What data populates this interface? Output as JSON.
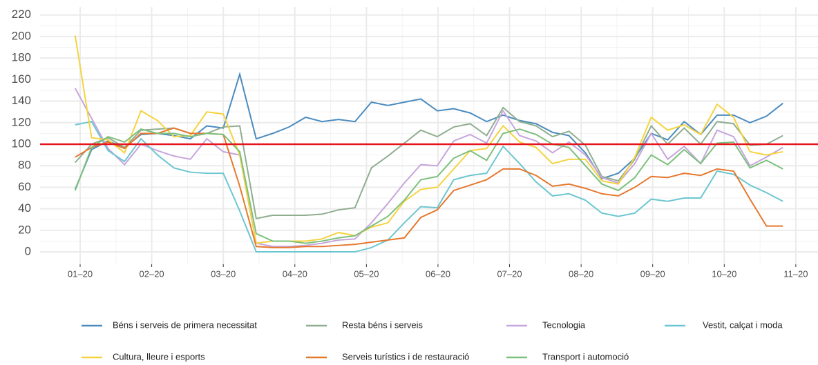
{
  "chart_data": {
    "type": "line",
    "x": [
      0.93,
      1.16,
      1.39,
      1.62,
      1.85,
      2.08,
      2.31,
      2.54,
      2.77,
      3.0,
      3.23,
      3.46,
      3.69,
      3.92,
      4.15,
      4.38,
      4.61,
      4.84,
      5.07,
      5.3,
      5.53,
      5.76,
      5.99,
      6.22,
      6.45,
      6.68,
      6.91,
      7.14,
      7.37,
      7.6,
      7.83,
      8.06,
      8.29,
      8.52,
      8.75,
      8.98,
      9.21,
      9.44,
      9.67,
      9.9,
      10.13,
      10.36,
      10.59,
      10.82
    ],
    "xlim": [
      0.44,
      11.31
    ],
    "xticks": [
      {
        "value": 1,
        "label": "01–20"
      },
      {
        "value": 2,
        "label": "02–20"
      },
      {
        "value": 3,
        "label": "03–20"
      },
      {
        "value": 4,
        "label": "04–20"
      },
      {
        "value": 5,
        "label": "05–20"
      },
      {
        "value": 6,
        "label": "06–20"
      },
      {
        "value": 7,
        "label": "07–20"
      },
      {
        "value": 8,
        "label": "08–20"
      },
      {
        "value": 9,
        "label": "09–20"
      },
      {
        "value": 10,
        "label": "10–20"
      },
      {
        "value": 11,
        "label": "11–20"
      }
    ],
    "ylim": [
      -11.5,
      227.5
    ],
    "yticks": [
      0,
      20,
      40,
      60,
      80,
      100,
      120,
      140,
      160,
      180,
      200,
      220
    ],
    "grid": true,
    "reference_line": {
      "value": 100,
      "color": "#e8141c"
    },
    "legend": "bottom",
    "series": [
      {
        "name": "Béns i serveis de primera necessitat",
        "color": "#4a8bbf",
        "values": [
          58,
          95,
          103,
          97,
          109,
          110,
          108,
          105,
          117,
          115,
          165,
          105,
          110,
          116,
          125,
          121,
          123,
          121,
          139,
          136,
          139,
          142,
          131,
          133,
          129,
          121,
          127,
          122,
          119,
          111,
          108,
          92,
          68,
          73,
          87,
          110,
          104,
          121,
          109,
          127,
          127,
          120,
          126,
          138
        ]
      },
      {
        "name": "Resta béns i serveis",
        "color": "#8fae8f",
        "values": [
          83,
          100,
          106,
          97,
          113,
          114,
          115,
          110,
          110,
          116,
          117,
          31,
          34,
          34,
          34,
          35,
          39,
          41,
          78,
          89,
          101,
          113,
          107,
          116,
          119,
          108,
          134,
          121,
          117,
          107,
          112,
          99,
          70,
          66,
          86,
          117,
          100,
          115,
          100,
          121,
          119,
          99,
          100,
          108
        ]
      },
      {
        "name": "Tecnologia",
        "color": "#c6a5dc",
        "values": [
          152,
          124,
          96,
          81,
          100,
          94,
          89,
          86,
          105,
          93,
          90,
          8,
          5,
          5,
          6,
          8,
          11,
          12,
          27,
          45,
          64,
          81,
          80,
          103,
          109,
          101,
          131,
          108,
          103,
          92,
          102,
          90,
          69,
          64,
          82,
          110,
          86,
          98,
          82,
          113,
          107,
          80,
          88,
          97
        ]
      },
      {
        "name": "Vestit, calçat i moda",
        "color": "#6cc6d0",
        "values": [
          118,
          121,
          94,
          84,
          105,
          90,
          78,
          74,
          73,
          73,
          38,
          0,
          0,
          0,
          0,
          0,
          0,
          0,
          4,
          11,
          27,
          42,
          41,
          67,
          71,
          73,
          98,
          82,
          65,
          52,
          54,
          48,
          36,
          33,
          36,
          49,
          47,
          50,
          50,
          75,
          72,
          62,
          55,
          47
        ]
      },
      {
        "name": "Cultura, lleure i esports",
        "color": "#f5d33f",
        "values": [
          201,
          106,
          104,
          92,
          131,
          122,
          107,
          108,
          130,
          128,
          90,
          8,
          10,
          10,
          10,
          12,
          18,
          15,
          23,
          27,
          47,
          58,
          60,
          77,
          94,
          96,
          117,
          102,
          97,
          82,
          86,
          86,
          66,
          63,
          88,
          125,
          113,
          118,
          109,
          137,
          125,
          93,
          90,
          93
        ]
      },
      {
        "name": "Serveis turístics i de restauració",
        "color": "#e6782e",
        "values": [
          88,
          97,
          102,
          96,
          110,
          110,
          115,
          110,
          110,
          109,
          61,
          5,
          4,
          4,
          5,
          5,
          6,
          7,
          9,
          11,
          13,
          32,
          39,
          57,
          62,
          67,
          77,
          77,
          71,
          61,
          63,
          59,
          54,
          52,
          60,
          70,
          69,
          73,
          71,
          77,
          75,
          49,
          24,
          24
        ]
      },
      {
        "name": "Transport i automoció",
        "color": "#7cc07c",
        "values": [
          57,
          97,
          107,
          102,
          114,
          110,
          110,
          107,
          110,
          109,
          93,
          17,
          10,
          10,
          8,
          10,
          13,
          15,
          24,
          33,
          48,
          67,
          70,
          87,
          94,
          85,
          110,
          114,
          109,
          100,
          97,
          80,
          63,
          57,
          69,
          90,
          81,
          95,
          82,
          101,
          102,
          78,
          85,
          77
        ]
      }
    ]
  }
}
